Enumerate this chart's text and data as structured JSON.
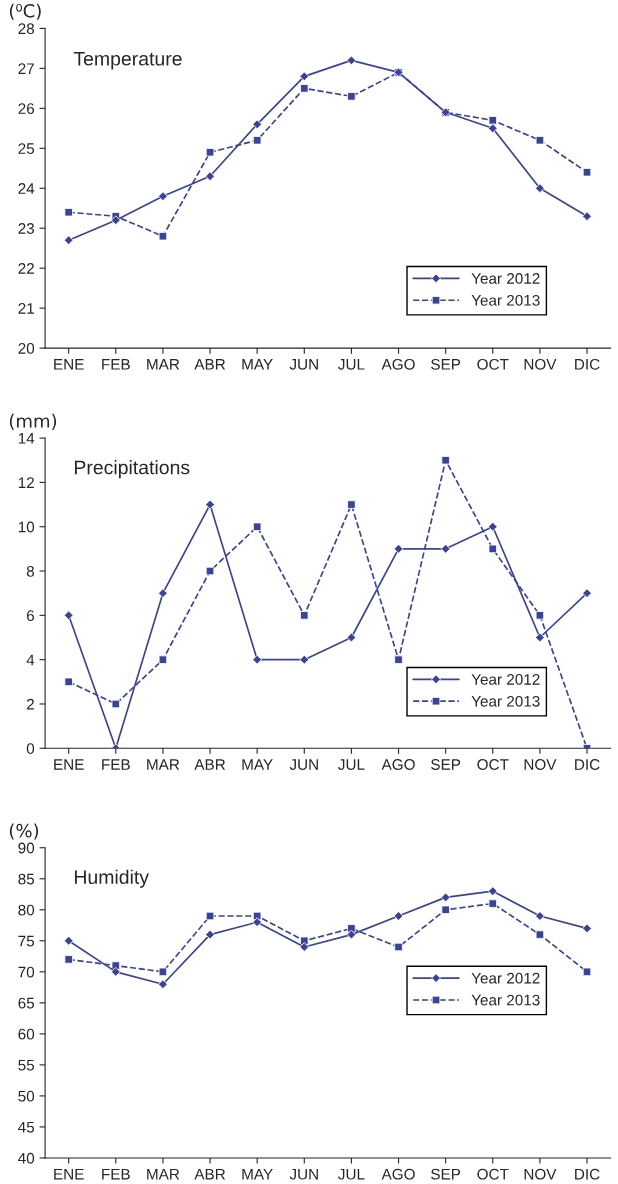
{
  "chart_data": [
    {
      "type": "line",
      "title": "Temperature",
      "ylabel": "(⁰C)",
      "categories": [
        "ENE",
        "FEB",
        "MAR",
        "ABR",
        "MAY",
        "JUN",
        "JUL",
        "AGO",
        "SEP",
        "OCT",
        "NOV",
        "DIC"
      ],
      "ylim": [
        20,
        28
      ],
      "yticks": [
        20,
        21,
        22,
        23,
        24,
        25,
        26,
        27,
        28
      ],
      "legend": "lower right",
      "grid": false,
      "series": [
        {
          "name": "Year 2012",
          "color": "#3b4396",
          "marker": "diamond",
          "line_style": "solid",
          "values": [
            22.7,
            23.2,
            23.8,
            24.3,
            25.6,
            26.8,
            27.2,
            26.9,
            25.9,
            25.5,
            24.0,
            23.3
          ]
        },
        {
          "name": "Year 2013",
          "color": "#3b4396",
          "marker": "square",
          "line_style": "dashed",
          "values": [
            23.4,
            23.3,
            22.8,
            24.9,
            25.2,
            26.5,
            26.3,
            26.9,
            25.9,
            25.7,
            25.2,
            24.4
          ]
        }
      ]
    },
    {
      "type": "line",
      "title": "Precipitations",
      "ylabel": "(mm)",
      "categories": [
        "ENE",
        "FEB",
        "MAR",
        "ABR",
        "MAY",
        "JUN",
        "JUL",
        "AGO",
        "SEP",
        "OCT",
        "NOV",
        "DIC"
      ],
      "ylim": [
        0,
        14
      ],
      "yticks": [
        0,
        2,
        4,
        6,
        8,
        10,
        12,
        14
      ],
      "legend": "lower right",
      "grid": false,
      "series": [
        {
          "name": "Year 2012",
          "color": "#3b4396",
          "marker": "diamond",
          "line_style": "solid",
          "values": [
            6,
            0,
            7,
            11,
            4,
            4,
            5,
            9,
            9,
            10,
            5,
            7
          ]
        },
        {
          "name": "Year 2013",
          "color": "#3b4396",
          "marker": "square",
          "line_style": "dashed",
          "values": [
            3,
            2,
            4,
            8,
            10,
            6,
            11,
            4,
            13,
            9,
            6,
            0
          ]
        }
      ]
    },
    {
      "type": "line",
      "title": "Humidity",
      "ylabel": "(%)",
      "categories": [
        "ENE",
        "FEB",
        "MAR",
        "ABR",
        "MAY",
        "JUN",
        "JUL",
        "AGO",
        "SEP",
        "OCT",
        "NOV",
        "DIC"
      ],
      "ylim": [
        40,
        90
      ],
      "yticks": [
        40,
        45,
        50,
        55,
        60,
        65,
        70,
        75,
        80,
        85,
        90
      ],
      "legend": "center right",
      "grid": false,
      "series": [
        {
          "name": "Year 2012",
          "color": "#3b4396",
          "marker": "diamond",
          "line_style": "solid",
          "values": [
            75,
            70,
            68,
            76,
            78,
            74,
            76,
            79,
            82,
            83,
            79,
            77
          ]
        },
        {
          "name": "Year 2013",
          "color": "#3b4396",
          "marker": "square",
          "line_style": "dashed",
          "values": [
            72,
            71,
            70,
            79,
            79,
            75,
            77,
            74,
            80,
            81,
            76,
            70
          ]
        }
      ]
    }
  ]
}
